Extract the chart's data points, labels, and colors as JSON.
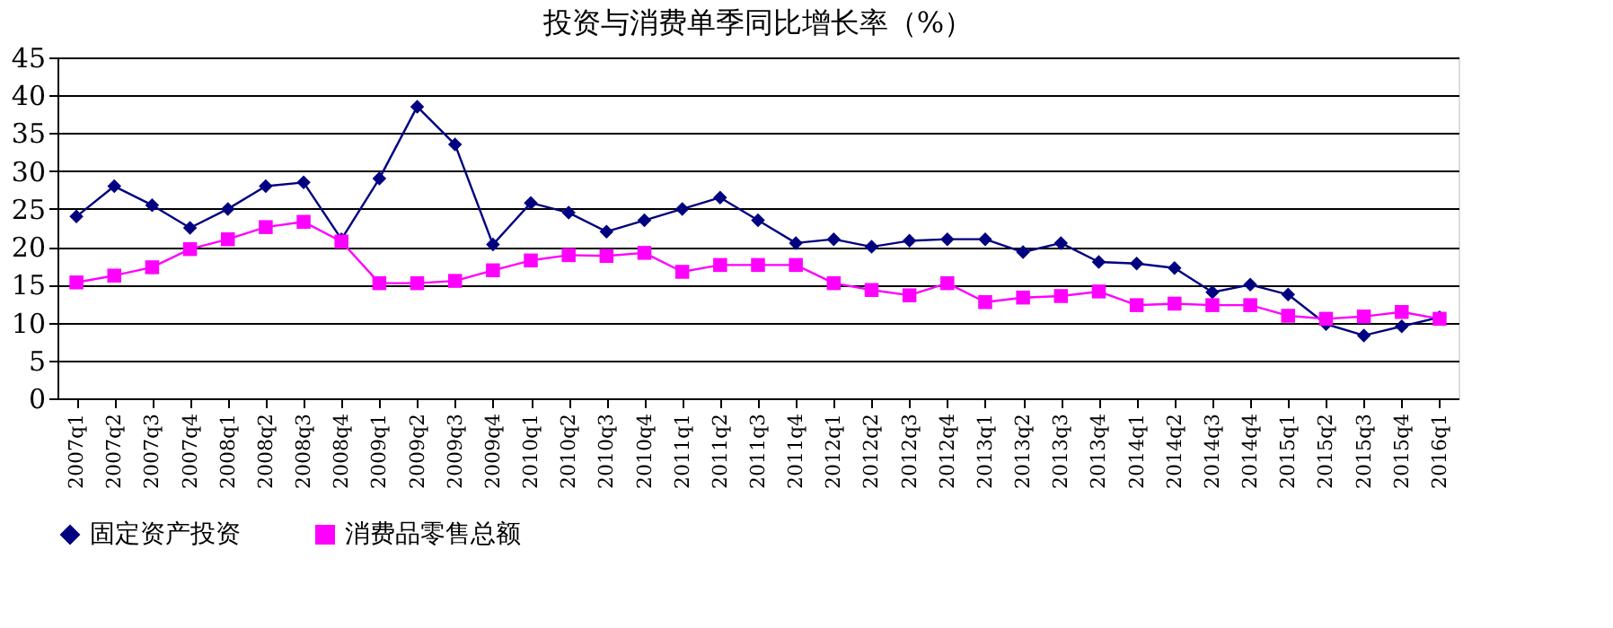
{
  "chart_data": {
    "type": "line",
    "title": "投资与消费单季同比增长率（%）",
    "categories": [
      "2007q1",
      "2007q2",
      "2007q3",
      "2007q4",
      "2008q1",
      "2008q2",
      "2008q3",
      "2008q4",
      "2009q1",
      "2009q2",
      "2009q3",
      "2009q4",
      "2010q1",
      "2010q2",
      "2010q3",
      "2010q4",
      "2011q1",
      "2011q2",
      "2011q3",
      "2011q4",
      "2012q1",
      "2012q2",
      "2012q3",
      "2012q4",
      "2013q1",
      "2013q2",
      "2013q3",
      "2013q4",
      "2014q1",
      "2014q2",
      "2014q3",
      "2014q4",
      "2015q1",
      "2015q2",
      "2015q3",
      "2015q4",
      "2016q1"
    ],
    "series": [
      {
        "name": "固定资产投资",
        "color": "#000080",
        "marker": "diamond",
        "values": [
          24,
          28,
          25.5,
          22.5,
          25,
          28,
          28.5,
          21,
          29,
          38.5,
          33.5,
          20.3,
          25.8,
          24.5,
          22,
          23.5,
          25,
          26.5,
          23.5,
          20.5,
          21,
          20,
          20.8,
          21,
          21,
          19.3,
          20.5,
          18,
          17.8,
          17.2,
          14,
          15,
          13.7,
          9.8,
          8.3,
          9.5,
          10.7
        ]
      },
      {
        "name": "消费品零售总额",
        "color": "#ff00ff",
        "marker": "square",
        "values": [
          15.3,
          16.2,
          17.3,
          19.7,
          21,
          22.6,
          23.3,
          20.7,
          15.2,
          15.2,
          15.5,
          16.9,
          18.2,
          18.9,
          18.8,
          19.2,
          16.7,
          17.6,
          17.6,
          17.6,
          15.2,
          14.3,
          13.6,
          15.2,
          12.7,
          13.3,
          13.5,
          14.1,
          12.3,
          12.5,
          12.3,
          12.3,
          10.9,
          10.5,
          10.8,
          11.4,
          10.5
        ]
      }
    ],
    "ylim": [
      0,
      45
    ],
    "yticks": [
      0,
      5,
      10,
      15,
      20,
      25,
      30,
      35,
      40,
      45
    ],
    "grid": "y",
    "legend": "bottom",
    "line_style": "solid"
  }
}
